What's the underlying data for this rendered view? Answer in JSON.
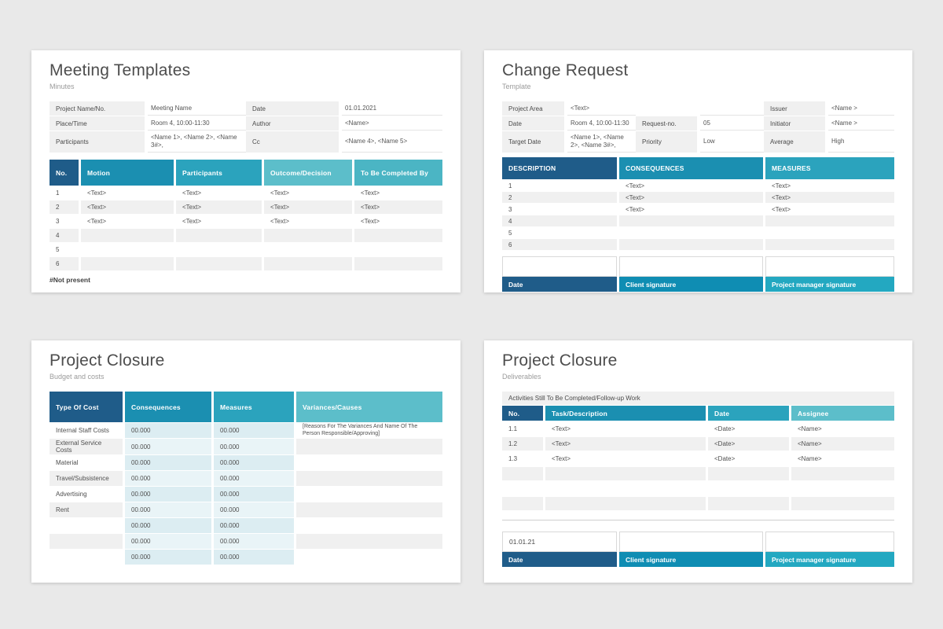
{
  "colors": {
    "page_background": "#E9E9E9",
    "card_background": "#FFFFFF",
    "header_dark_blue": "#1F5C89",
    "header_blue": "#1B8FB1",
    "header_teal": "#2BA3BD",
    "header_light_teal": "#5CBECA",
    "header_mid_teal": "#4BB5C4",
    "footer_client_blue": "#0F8DB3",
    "footer_pm_teal": "#23A8C1",
    "row_gray": "#F0F0F0",
    "cell_light_blue": "#DCEDF2",
    "cell_lighter_blue": "#E9F4F7"
  },
  "meeting": {
    "title": "Meeting Templates",
    "subtitle": "Minutes",
    "info_rows": [
      [
        "Project Name/No.",
        "Meeting Name",
        "Date",
        "01.01.2021"
      ],
      [
        "Place/Time",
        "Room 4, 10:00-11:30",
        "Author",
        "<Name>"
      ],
      [
        "Participants",
        "<Name 1>, <Name 2>, <Name 3#>,",
        "Cc",
        "<Name 4>, <Name 5>"
      ]
    ],
    "table": {
      "headers": [
        "No.",
        "Motion",
        "Participants",
        "Outcome/Decision",
        "To Be Completed By"
      ],
      "rows": [
        [
          "1",
          "<Text>",
          "<Text>",
          "<Text>",
          "<Text>"
        ],
        [
          "2",
          "<Text>",
          "<Text>",
          "<Text>",
          "<Text>"
        ],
        [
          "3",
          "<Text>",
          "<Text>",
          "<Text>",
          "<Text>"
        ],
        [
          "4",
          "",
          "",
          "",
          ""
        ],
        [
          "5",
          "",
          "",
          "",
          ""
        ],
        [
          "6",
          "",
          "",
          "",
          ""
        ]
      ]
    },
    "footnote": "#Not present"
  },
  "change": {
    "title": "Change Request",
    "subtitle": "Template",
    "info_rows": [
      [
        "Project Area",
        "<Text>",
        "",
        "",
        "Issuer",
        "<Name >"
      ],
      [
        "Date",
        "Room 4, 10:00-11:30",
        "Request-no.",
        "05",
        "Initiator",
        "<Name >"
      ],
      [
        "Target Date",
        "<Name 1>, <Name 2>, <Name 3#>,",
        "Priority",
        "Low",
        "Average",
        "High"
      ]
    ],
    "table": {
      "headers": [
        "DESCRIPTION",
        "CONSEQUENCES",
        "MEASURES"
      ],
      "rows": [
        [
          "1",
          "<Text>",
          "<Text>"
        ],
        [
          "2",
          "<Text>",
          "<Text>"
        ],
        [
          "3",
          "<Text>",
          "<Text>"
        ],
        [
          "4",
          "",
          ""
        ],
        [
          "5",
          "",
          ""
        ],
        [
          "6",
          "",
          ""
        ]
      ]
    },
    "signature": {
      "boxes": [
        "",
        "",
        ""
      ],
      "footer": [
        "Date",
        "Client signature",
        "Project manager signature"
      ]
    }
  },
  "budget": {
    "title": "Project Closure",
    "subtitle": "Budget and costs",
    "table": {
      "headers": [
        "Type Of Cost",
        "Consequences",
        "Measures",
        "Variances/Causes"
      ],
      "rows": [
        [
          "Internal Staff Costs",
          "00.000",
          "00.000",
          "[Reasons For The Variances And Name Of The Person Responsible/Approving]"
        ],
        [
          "External Service Costs",
          "00.000",
          "00.000",
          ""
        ],
        [
          "Material",
          "00.000",
          "00.000",
          ""
        ],
        [
          "Travel/Subsistence",
          "00.000",
          "00.000",
          ""
        ],
        [
          "Advertising",
          "00.000",
          "00.000",
          ""
        ],
        [
          "Rent",
          "00.000",
          "00.000",
          ""
        ],
        [
          "",
          "00.000",
          "00.000",
          ""
        ],
        [
          "",
          "00.000",
          "00.000",
          ""
        ],
        [
          "",
          "00.000",
          "00.000",
          ""
        ]
      ]
    }
  },
  "deliverables": {
    "title": "Project Closure",
    "subtitle": "Deliverables",
    "section_label": "Activities Still To Be Completed/Follow-up Work",
    "table": {
      "headers": [
        "No.",
        "Task/Description",
        "Date",
        "Assignee"
      ],
      "rows": [
        [
          "1.1",
          "<Text>",
          "<Date>",
          "<Name>"
        ],
        [
          "1.2",
          "<Text>",
          "<Date>",
          "<Name>"
        ],
        [
          "1.3",
          "<Text>",
          "<Date>",
          "<Name>"
        ],
        [
          "",
          "",
          "",
          ""
        ],
        [
          "",
          "",
          "",
          ""
        ],
        [
          "",
          "",
          "",
          ""
        ]
      ]
    },
    "signature": {
      "boxes": [
        "01.01.21",
        "",
        ""
      ],
      "footer": [
        "Date",
        "Client signature",
        "Project manager signature"
      ]
    }
  }
}
